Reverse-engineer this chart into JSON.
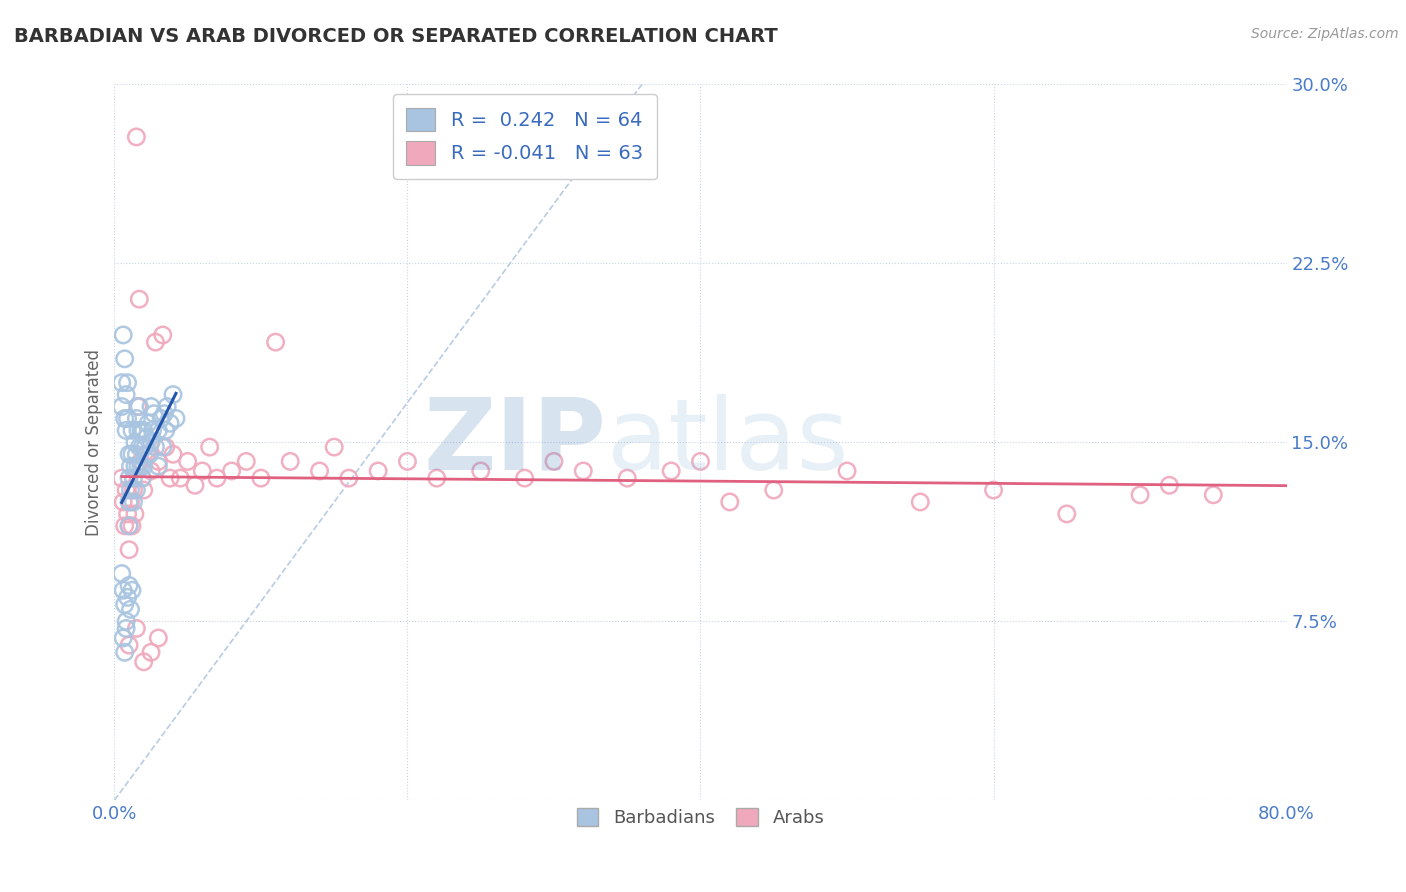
{
  "title": "BARBADIAN VS ARAB DIVORCED OR SEPARATED CORRELATION CHART",
  "source": "Source: ZipAtlas.com",
  "ylabel": "Divorced or Separated",
  "xlim": [
    0.0,
    0.8
  ],
  "ylim": [
    0.0,
    0.3
  ],
  "xticks": [
    0.0,
    0.2,
    0.4,
    0.6,
    0.8
  ],
  "xticklabels": [
    "0.0%",
    "",
    "",
    "",
    "80.0%"
  ],
  "yticks": [
    0.0,
    0.075,
    0.15,
    0.225,
    0.3
  ],
  "yticklabels": [
    "",
    "7.5%",
    "15.0%",
    "22.5%",
    "30.0%"
  ],
  "barbadian_color": "#a8c4e0",
  "arab_color": "#f0a8bc",
  "barbadian_line_color": "#2255aa",
  "arab_line_color": "#e06080",
  "diagonal_line_color": "#b8cce4",
  "legend_blue_label": "R =  0.242   N = 64",
  "legend_pink_label": "R = -0.041   N = 63",
  "legend_blue_color": "#a8c4e0",
  "legend_pink_color": "#f0a8bc",
  "watermark_zip": "ZIP",
  "watermark_atlas": "atlas",
  "background_color": "#ffffff",
  "grid_color": "#c8d4e8",
  "barbadian_x": [
    0.005,
    0.005,
    0.006,
    0.007,
    0.007,
    0.008,
    0.008,
    0.009,
    0.009,
    0.01,
    0.01,
    0.01,
    0.01,
    0.011,
    0.011,
    0.012,
    0.012,
    0.013,
    0.013,
    0.014,
    0.014,
    0.015,
    0.015,
    0.015,
    0.016,
    0.016,
    0.017,
    0.017,
    0.018,
    0.018,
    0.019,
    0.019,
    0.02,
    0.02,
    0.021,
    0.022,
    0.023,
    0.024,
    0.025,
    0.025,
    0.026,
    0.027,
    0.028,
    0.03,
    0.03,
    0.032,
    0.033,
    0.034,
    0.035,
    0.036,
    0.038,
    0.04,
    0.042,
    0.005,
    0.006,
    0.007,
    0.008,
    0.009,
    0.01,
    0.011,
    0.006,
    0.007,
    0.008,
    0.012
  ],
  "barbadian_y": [
    0.175,
    0.165,
    0.195,
    0.185,
    0.16,
    0.17,
    0.155,
    0.175,
    0.16,
    0.145,
    0.135,
    0.125,
    0.115,
    0.14,
    0.13,
    0.155,
    0.145,
    0.135,
    0.125,
    0.15,
    0.14,
    0.16,
    0.145,
    0.13,
    0.155,
    0.14,
    0.165,
    0.148,
    0.155,
    0.14,
    0.148,
    0.135,
    0.155,
    0.14,
    0.148,
    0.152,
    0.158,
    0.145,
    0.165,
    0.15,
    0.155,
    0.162,
    0.148,
    0.155,
    0.14,
    0.16,
    0.148,
    0.162,
    0.155,
    0.165,
    0.158,
    0.17,
    0.16,
    0.095,
    0.088,
    0.082,
    0.075,
    0.085,
    0.09,
    0.08,
    0.068,
    0.062,
    0.072,
    0.088
  ],
  "arab_x": [
    0.005,
    0.006,
    0.007,
    0.008,
    0.009,
    0.01,
    0.01,
    0.011,
    0.012,
    0.013,
    0.014,
    0.015,
    0.016,
    0.017,
    0.018,
    0.019,
    0.02,
    0.022,
    0.025,
    0.028,
    0.03,
    0.033,
    0.035,
    0.038,
    0.04,
    0.045,
    0.05,
    0.055,
    0.06,
    0.065,
    0.07,
    0.08,
    0.09,
    0.1,
    0.11,
    0.12,
    0.14,
    0.15,
    0.16,
    0.18,
    0.2,
    0.22,
    0.25,
    0.28,
    0.3,
    0.32,
    0.35,
    0.38,
    0.4,
    0.42,
    0.45,
    0.5,
    0.55,
    0.6,
    0.65,
    0.7,
    0.72,
    0.75,
    0.01,
    0.015,
    0.02,
    0.025,
    0.03
  ],
  "arab_y": [
    0.135,
    0.125,
    0.115,
    0.13,
    0.12,
    0.115,
    0.105,
    0.125,
    0.115,
    0.13,
    0.12,
    0.278,
    0.165,
    0.21,
    0.142,
    0.135,
    0.13,
    0.145,
    0.138,
    0.192,
    0.142,
    0.195,
    0.148,
    0.135,
    0.145,
    0.135,
    0.142,
    0.132,
    0.138,
    0.148,
    0.135,
    0.138,
    0.142,
    0.135,
    0.192,
    0.142,
    0.138,
    0.148,
    0.135,
    0.138,
    0.142,
    0.135,
    0.138,
    0.135,
    0.142,
    0.138,
    0.135,
    0.138,
    0.142,
    0.125,
    0.13,
    0.138,
    0.125,
    0.13,
    0.12,
    0.128,
    0.132,
    0.128,
    0.065,
    0.072,
    0.058,
    0.062,
    0.068
  ]
}
